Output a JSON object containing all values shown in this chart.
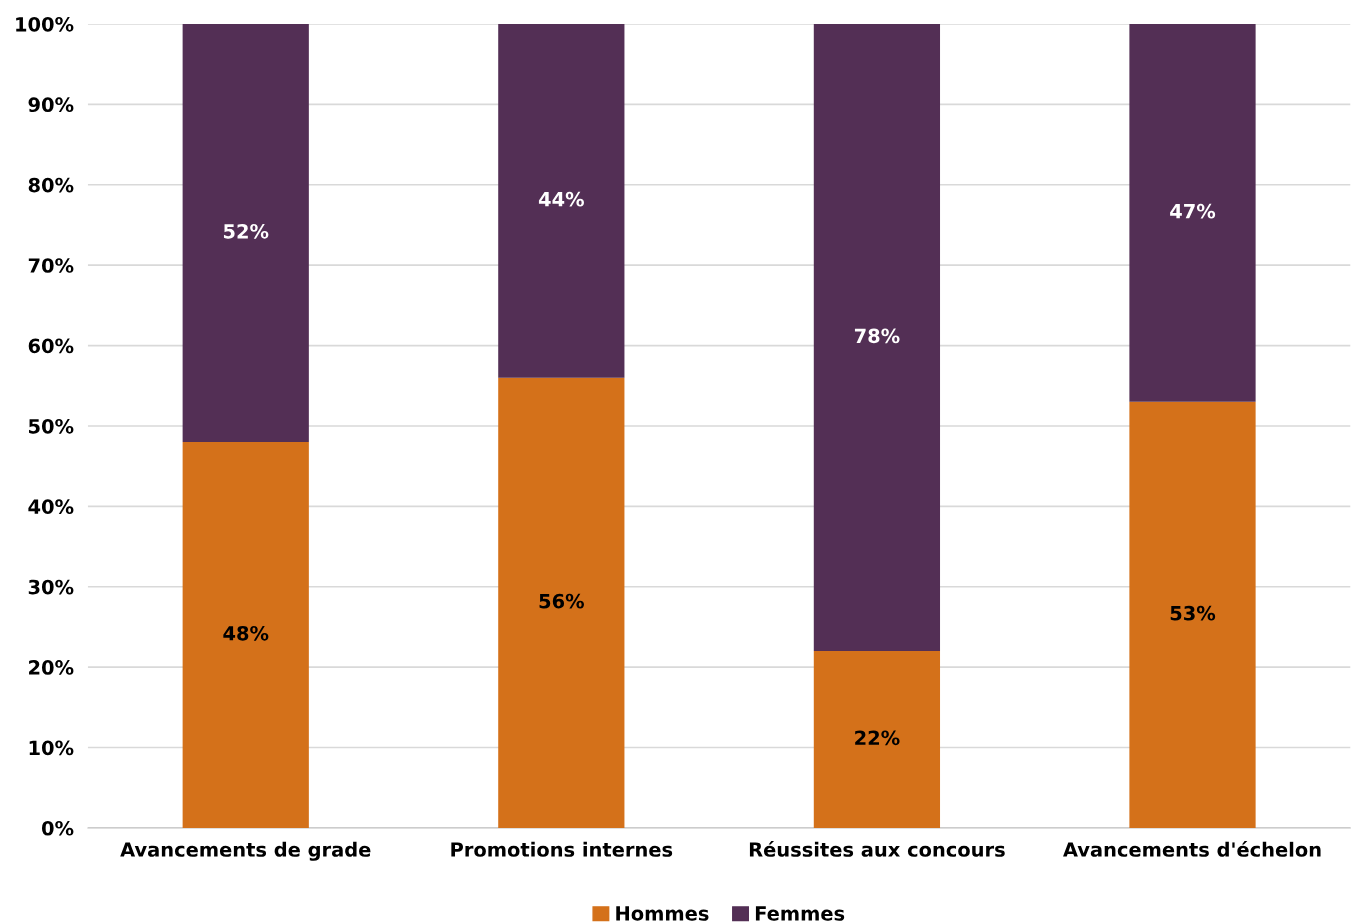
{
  "chart_data": {
    "type": "bar",
    "stacked": true,
    "categories": [
      "Avancements de grade",
      "Promotions internes",
      "Réussites aux concours",
      "Avancements d'échelon"
    ],
    "series": [
      {
        "name": "Hommes",
        "color": "#d4711a",
        "values": [
          48,
          56,
          22,
          53
        ],
        "value_labels": [
          "48%",
          "56%",
          "22%",
          "53%"
        ]
      },
      {
        "name": "Femmes",
        "color": "#532f55",
        "values": [
          52,
          44,
          78,
          47
        ],
        "value_labels": [
          "52%",
          "44%",
          "78%",
          "47%"
        ]
      }
    ],
    "ylim": [
      0,
      100
    ],
    "yticks": [
      {
        "value": 0,
        "label": "0%"
      },
      {
        "value": 10,
        "label": "10%"
      },
      {
        "value": 20,
        "label": "20%"
      },
      {
        "value": 30,
        "label": "30%"
      },
      {
        "value": 40,
        "label": "40%"
      },
      {
        "value": 50,
        "label": "50%"
      },
      {
        "value": 60,
        "label": "60%"
      },
      {
        "value": 70,
        "label": "70%"
      },
      {
        "value": 80,
        "label": "80%"
      },
      {
        "value": 90,
        "label": "90%"
      },
      {
        "value": 100,
        "label": "100%"
      }
    ],
    "grid": "y",
    "legend": "bottom"
  }
}
